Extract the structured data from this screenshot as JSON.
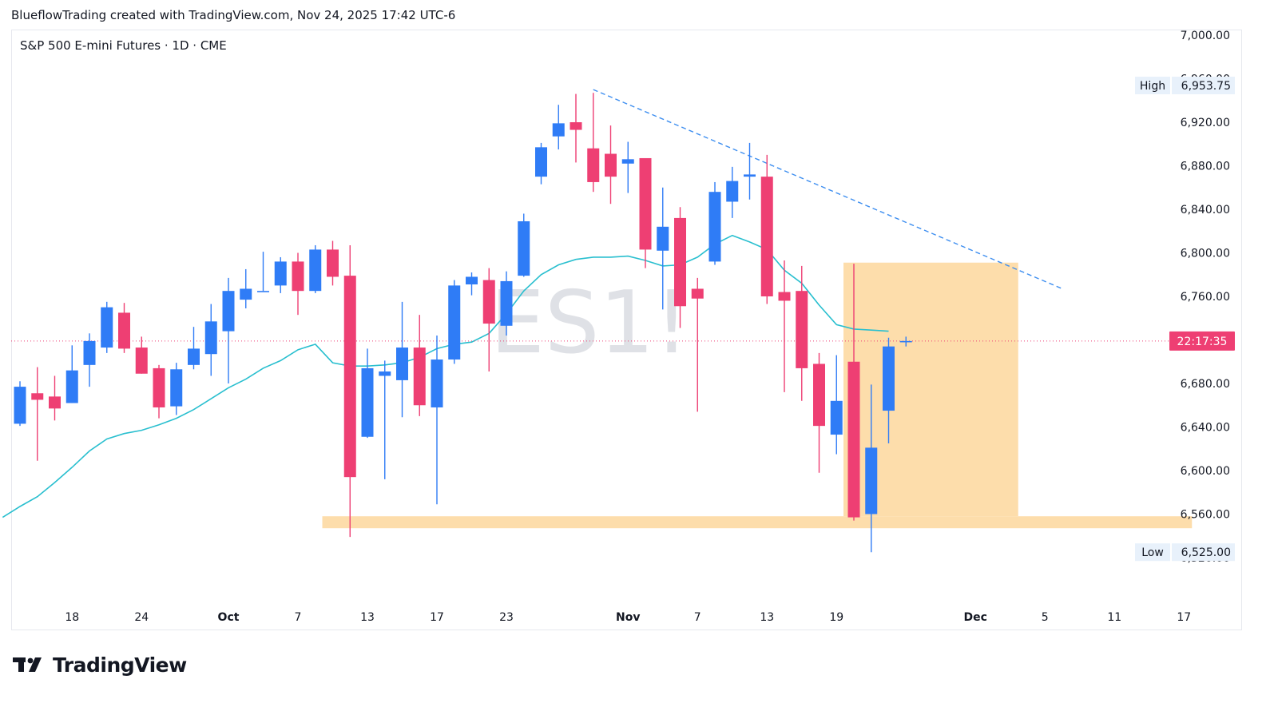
{
  "header": {
    "caption": "BlueflowTrading created with TradingView.com, Nov 24, 2025 17:42 UTC-6"
  },
  "footer": {
    "brand": "TradingView"
  },
  "colors": {
    "up": "#2f7cf6",
    "down": "#ee3f73",
    "ma": "#29bfcf",
    "zone": "#fddba6",
    "trendline": "#3d8ef0",
    "price_line": "#ee3f73",
    "label_bg": "#e8f1fb"
  },
  "chart_data": {
    "type": "candlestick",
    "title": "S&P 500 E-mini Futures · 1D · CME",
    "watermark": "ES1!",
    "xlabel": "",
    "ylabel": "",
    "ylim": [
      6495,
      7010
    ],
    "y_ticks": [
      "7,000.00",
      "6,960.00",
      "6,920.00",
      "6,880.00",
      "6,840.00",
      "6,800.00",
      "6,760.00",
      "6,720.00",
      "6,680.00",
      "6,640.00",
      "6,600.00",
      "6,560.00",
      "6,520.00"
    ],
    "y_tick_values": [
      7000,
      6960,
      6920,
      6880,
      6840,
      6800,
      6760,
      6720,
      6680,
      6640,
      6600,
      6560,
      6520
    ],
    "x_ticks": [
      {
        "label": "18",
        "date": "2025-09-18"
      },
      {
        "label": "24",
        "date": "2025-09-24"
      },
      {
        "label": "Oct",
        "date": "2025-10-01"
      },
      {
        "label": "7",
        "date": "2025-10-07"
      },
      {
        "label": "13",
        "date": "2025-10-13"
      },
      {
        "label": "17",
        "date": "2025-10-17"
      },
      {
        "label": "23",
        "date": "2025-10-23"
      },
      {
        "label": "Nov",
        "date": "2025-11-03"
      },
      {
        "label": "7",
        "date": "2025-11-07"
      },
      {
        "label": "13",
        "date": "2025-11-13"
      },
      {
        "label": "19",
        "date": "2025-11-19"
      },
      {
        "label": "Dec",
        "date": "2025-12-01"
      },
      {
        "label": "5",
        "date": "2025-12-05"
      },
      {
        "label": "11",
        "date": "2025-12-11"
      },
      {
        "label": "17",
        "date": "2025-12-17"
      }
    ],
    "candles": [
      {
        "date": "2025-09-15",
        "open": 6643,
        "high": 6682,
        "low": 6641,
        "close": 6677
      },
      {
        "date": "2025-09-16",
        "open": 6671,
        "high": 6695,
        "low": 6609,
        "close": 6665
      },
      {
        "date": "2025-09-17",
        "open": 6668,
        "high": 6687,
        "low": 6646,
        "close": 6657
      },
      {
        "date": "2025-09-18",
        "open": 6662,
        "high": 6715,
        "low": 6662,
        "close": 6692
      },
      {
        "date": "2025-09-19",
        "open": 6697,
        "high": 6726,
        "low": 6677,
        "close": 6719
      },
      {
        "date": "2025-09-22",
        "open": 6713,
        "high": 6755,
        "low": 6708,
        "close": 6750
      },
      {
        "date": "2025-09-23",
        "open": 6745,
        "high": 6754,
        "low": 6708,
        "close": 6712
      },
      {
        "date": "2025-09-24",
        "open": 6713,
        "high": 6723,
        "low": 6689,
        "close": 6689
      },
      {
        "date": "2025-09-25",
        "open": 6694,
        "high": 6697,
        "low": 6648,
        "close": 6658
      },
      {
        "date": "2025-09-26",
        "open": 6659,
        "high": 6699,
        "low": 6651,
        "close": 6693
      },
      {
        "date": "2025-09-29",
        "open": 6697,
        "high": 6732,
        "low": 6693,
        "close": 6712
      },
      {
        "date": "2025-09-30",
        "open": 6707,
        "high": 6753,
        "low": 6687,
        "close": 6737
      },
      {
        "date": "2025-10-01",
        "open": 6728,
        "high": 6777,
        "low": 6680,
        "close": 6765
      },
      {
        "date": "2025-10-02",
        "open": 6757,
        "high": 6785,
        "low": 6749,
        "close": 6767
      },
      {
        "date": "2025-10-03",
        "open": 6765,
        "high": 6801,
        "low": 6765,
        "close": 6765
      },
      {
        "date": "2025-10-06",
        "open": 6770,
        "high": 6796,
        "low": 6763,
        "close": 6792
      },
      {
        "date": "2025-10-07",
        "open": 6792,
        "high": 6800,
        "low": 6743,
        "close": 6765
      },
      {
        "date": "2025-10-08",
        "open": 6765,
        "high": 6807,
        "low": 6763,
        "close": 6803
      },
      {
        "date": "2025-10-09",
        "open": 6803,
        "high": 6811,
        "low": 6770,
        "close": 6778
      },
      {
        "date": "2025-10-10",
        "open": 6779,
        "high": 6807,
        "low": 6539,
        "close": 6594
      },
      {
        "date": "2025-10-13",
        "open": 6631,
        "high": 6712,
        "low": 6630,
        "close": 6694
      },
      {
        "date": "2025-10-14",
        "open": 6687,
        "high": 6701,
        "low": 6592,
        "close": 6691
      },
      {
        "date": "2025-10-15",
        "open": 6683,
        "high": 6755,
        "low": 6649,
        "close": 6713
      },
      {
        "date": "2025-10-16",
        "open": 6713,
        "high": 6743,
        "low": 6650,
        "close": 6660
      },
      {
        "date": "2025-10-17",
        "open": 6658,
        "high": 6724,
        "low": 6569,
        "close": 6702
      },
      {
        "date": "2025-10-20",
        "open": 6702,
        "high": 6775,
        "low": 6698,
        "close": 6770
      },
      {
        "date": "2025-10-21",
        "open": 6771,
        "high": 6782,
        "low": 6761,
        "close": 6778
      },
      {
        "date": "2025-10-22",
        "open": 6775,
        "high": 6786,
        "low": 6691,
        "close": 6735
      },
      {
        "date": "2025-10-23",
        "open": 6733,
        "high": 6783,
        "low": 6724,
        "close": 6774
      },
      {
        "date": "2025-10-24",
        "open": 6779,
        "high": 6836,
        "low": 6778,
        "close": 6829
      },
      {
        "date": "2025-10-27",
        "open": 6870,
        "high": 6901,
        "low": 6863,
        "close": 6897
      },
      {
        "date": "2025-10-28",
        "open": 6907,
        "high": 6936,
        "low": 6895,
        "close": 6919
      },
      {
        "date": "2025-10-29",
        "open": 6920,
        "high": 6946,
        "low": 6883,
        "close": 6913
      },
      {
        "date": "2025-10-30",
        "open": 6896,
        "high": 6947,
        "low": 6856,
        "close": 6865
      },
      {
        "date": "2025-10-31",
        "open": 6891,
        "high": 6917,
        "low": 6845,
        "close": 6870
      },
      {
        "date": "2025-11-03",
        "open": 6882,
        "high": 6902,
        "low": 6855,
        "close": 6886
      },
      {
        "date": "2025-11-04",
        "open": 6887,
        "high": 6887,
        "low": 6786,
        "close": 6803
      },
      {
        "date": "2025-11-05",
        "open": 6802,
        "high": 6860,
        "low": 6748,
        "close": 6824
      },
      {
        "date": "2025-11-06",
        "open": 6832,
        "high": 6842,
        "low": 6731,
        "close": 6751
      },
      {
        "date": "2025-11-07",
        "open": 6767,
        "high": 6777,
        "low": 6654,
        "close": 6758
      },
      {
        "date": "2025-11-10",
        "open": 6792,
        "high": 6865,
        "low": 6789,
        "close": 6856
      },
      {
        "date": "2025-11-11",
        "open": 6847,
        "high": 6879,
        "low": 6832,
        "close": 6866
      },
      {
        "date": "2025-11-12",
        "open": 6870,
        "high": 6901,
        "low": 6849,
        "close": 6872
      },
      {
        "date": "2025-11-13",
        "open": 6870,
        "high": 6890,
        "low": 6753,
        "close": 6760
      },
      {
        "date": "2025-11-14",
        "open": 6764,
        "high": 6793,
        "low": 6672,
        "close": 6756
      },
      {
        "date": "2025-11-17",
        "open": 6765,
        "high": 6788,
        "low": 6664,
        "close": 6694
      },
      {
        "date": "2025-11-18",
        "open": 6698,
        "high": 6708,
        "low": 6598,
        "close": 6641
      },
      {
        "date": "2025-11-19",
        "open": 6633,
        "high": 6706,
        "low": 6615,
        "close": 6664
      },
      {
        "date": "2025-11-20",
        "open": 6700,
        "high": 6790,
        "low": 6554,
        "close": 6557
      },
      {
        "date": "2025-11-21",
        "open": 6560,
        "high": 6679,
        "low": 6525,
        "close": 6621
      },
      {
        "date": "2025-11-24",
        "open": 6655,
        "high": 6722,
        "low": 6625,
        "close": 6714
      },
      {
        "date": "2025-11-25",
        "open": 6719,
        "high": 6723,
        "low": 6714,
        "close": 6719
      }
    ],
    "moving_average": {
      "start_date": "2025-09-12",
      "values": [
        6557,
        6567,
        6576,
        6589,
        6603,
        6618,
        6629,
        6634,
        6637,
        6642,
        6648,
        6656,
        6666,
        6676,
        6684,
        6694,
        6701,
        6711,
        6716,
        6699,
        6696,
        6696,
        6697,
        6699,
        6704,
        6712,
        6716,
        6718,
        6726,
        6744,
        6765,
        6780,
        6789,
        6794,
        6796,
        6796,
        6797,
        6793,
        6788,
        6789,
        6796,
        6808,
        6816,
        6810,
        6803,
        6784,
        6772,
        6752,
        6734,
        6730,
        6729,
        6728
      ]
    },
    "trendline": {
      "start": {
        "date": "2025-10-30",
        "price": 6950
      },
      "end": {
        "date": "2025-12-08",
        "price": 6767
      }
    },
    "zones": [
      {
        "from_date": "2025-11-20",
        "to_date": "2025-12-03",
        "top": 6791,
        "bottom": 6558
      },
      {
        "from_date": "2025-10-09",
        "to_date": "2025-12-17",
        "top": 6558,
        "bottom": 6547
      }
    ],
    "current_price": 6719,
    "countdown": "22:17:35",
    "high_label": "High",
    "high_value": "6,953.75",
    "low_label": "Low",
    "low_value": "6,525.00"
  }
}
